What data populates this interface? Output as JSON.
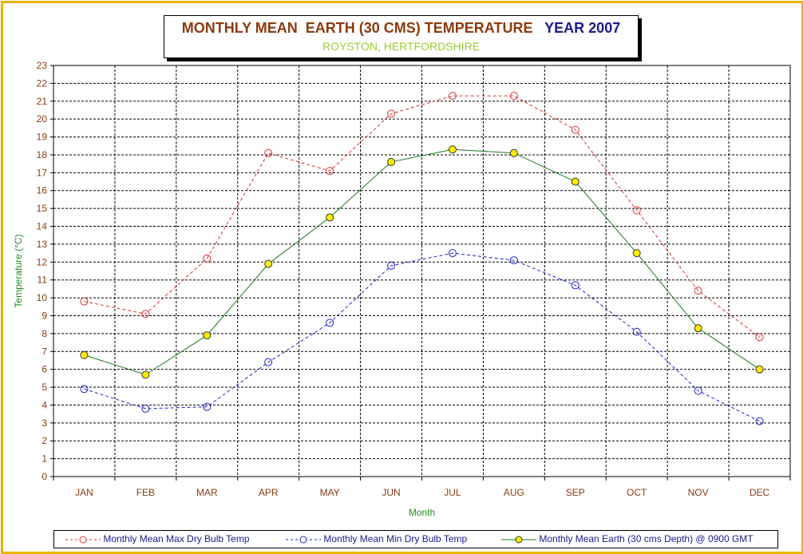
{
  "title": {
    "main": "MONTHLY MEAN  EARTH (30 CMS) TEMPERATURE",
    "year": "YEAR 2007",
    "subtitle": "ROYSTON, HERTFORDSHIRE"
  },
  "colors": {
    "frame": "#e8b400",
    "title_main": "#8b3a0f",
    "title_year": "#1a1a8c",
    "subtitle": "#9acd32",
    "tick_labels": "#8b3a0f",
    "axis_titles": "#228b22"
  },
  "chart_data": {
    "type": "line",
    "xlabel": "Month",
    "ylabel": "Temperature (°C)",
    "ylim": [
      0,
      23
    ],
    "ytick_step": 1,
    "grid": true,
    "legend_position": "bottom",
    "categories": [
      "JAN",
      "FEB",
      "MAR",
      "APR",
      "MAY",
      "JUN",
      "JUL",
      "AUG",
      "SEP",
      "OCT",
      "NOV",
      "DEC"
    ],
    "series": [
      {
        "name": "Monthly Mean Max Dry Bulb Temp",
        "color": "#e03030",
        "style": "dashed",
        "marker": "open-circle",
        "values": [
          9.8,
          9.1,
          12.2,
          18.1,
          17.1,
          20.3,
          21.3,
          21.3,
          19.4,
          14.9,
          10.4,
          7.8
        ]
      },
      {
        "name": "Monthly Mean Min Dry Bulb Temp",
        "color": "#2020d0",
        "style": "dashed",
        "marker": "open-circle",
        "values": [
          4.9,
          3.8,
          3.9,
          6.4,
          8.6,
          11.8,
          12.5,
          12.1,
          10.7,
          8.1,
          4.8,
          3.1
        ]
      },
      {
        "name": "Monthly Mean Earth (30 cms Depth) @ 0900 GMT",
        "color": "#1a7a1a",
        "style": "solid",
        "marker": "yellow-filled-circle",
        "values": [
          6.8,
          5.7,
          7.9,
          11.9,
          14.5,
          17.6,
          18.3,
          18.1,
          16.5,
          12.5,
          8.3,
          6.0
        ]
      }
    ]
  }
}
